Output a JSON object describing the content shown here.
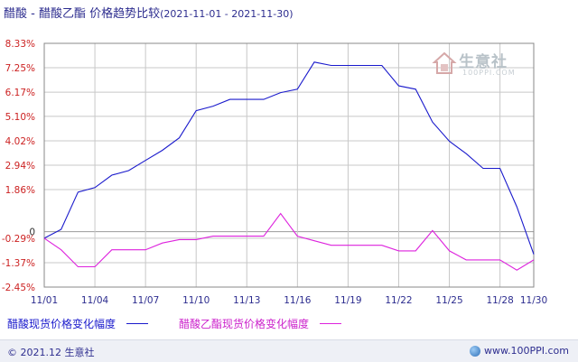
{
  "header": {
    "title": "醋酸 - 醋酸乙酯 价格趋势比较",
    "date_range": "(2021-11-01 - 2021-11-30)"
  },
  "watermark": {
    "name": "生意社",
    "url": "100PPI.COM"
  },
  "legend": {
    "series1": "醋酸现货价格变化幅度",
    "series2": "醋酸乙酯现货价格变化幅度"
  },
  "footer": {
    "left": "© 2021.12 生意社",
    "right": "www.100PPI.com"
  },
  "colors": {
    "series1": "#1a1acc",
    "series2": "#dd22dd",
    "ytick": "#cc2222",
    "xtick": "#2d2d8f",
    "grid": "#c8c8c8"
  },
  "chart_data": {
    "type": "line",
    "ylim": [
      -2.45,
      8.33
    ],
    "yticks": [
      8.33,
      7.25,
      6.17,
      5.1,
      4.02,
      2.94,
      1.86,
      0,
      -0.29,
      -1.37,
      -2.45
    ],
    "ytick_labels": [
      "8.33%",
      "7.25%",
      "6.17%",
      "5.10%",
      "4.02%",
      "2.94%",
      "1.86%",
      "0",
      "-0.29%",
      "-1.37%",
      "-2.45%"
    ],
    "x": [
      "11/01",
      "11/02",
      "11/03",
      "11/04",
      "11/05",
      "11/06",
      "11/07",
      "11/08",
      "11/09",
      "11/10",
      "11/11",
      "11/12",
      "11/13",
      "11/14",
      "11/15",
      "11/16",
      "11/17",
      "11/18",
      "11/19",
      "11/20",
      "11/21",
      "11/22",
      "11/23",
      "11/24",
      "11/25",
      "11/26",
      "11/27",
      "11/28",
      "11/29",
      "11/30"
    ],
    "xtick_labels": [
      "11/01",
      "11/04",
      "11/07",
      "11/10",
      "11/13",
      "11/16",
      "11/19",
      "11/22",
      "11/25",
      "11/28",
      "11/30"
    ],
    "xtick_index": [
      0,
      3,
      6,
      9,
      12,
      15,
      18,
      21,
      24,
      27,
      29
    ],
    "series": [
      {
        "name": "醋酸现货价格变化幅度",
        "values": [
          -0.29,
          0.1,
          1.75,
          1.95,
          2.5,
          2.7,
          3.15,
          3.6,
          4.15,
          5.35,
          5.55,
          5.85,
          5.85,
          5.85,
          6.15,
          6.3,
          7.5,
          7.35,
          7.35,
          7.35,
          7.35,
          6.45,
          6.3,
          4.85,
          4.0,
          3.45,
          2.8,
          2.8,
          1.1,
          -1.0
        ]
      },
      {
        "name": "醋酸乙酯现货价格变化幅度",
        "values": [
          -0.29,
          -0.8,
          -1.55,
          -1.55,
          -0.8,
          -0.8,
          -0.8,
          -0.5,
          -0.35,
          -0.35,
          -0.2,
          -0.2,
          -0.2,
          -0.2,
          0.8,
          -0.2,
          -0.4,
          -0.6,
          -0.6,
          -0.6,
          -0.6,
          -0.85,
          -0.85,
          0.05,
          -0.85,
          -1.25,
          -1.25,
          -1.25,
          -1.7,
          -1.25
        ]
      }
    ]
  }
}
